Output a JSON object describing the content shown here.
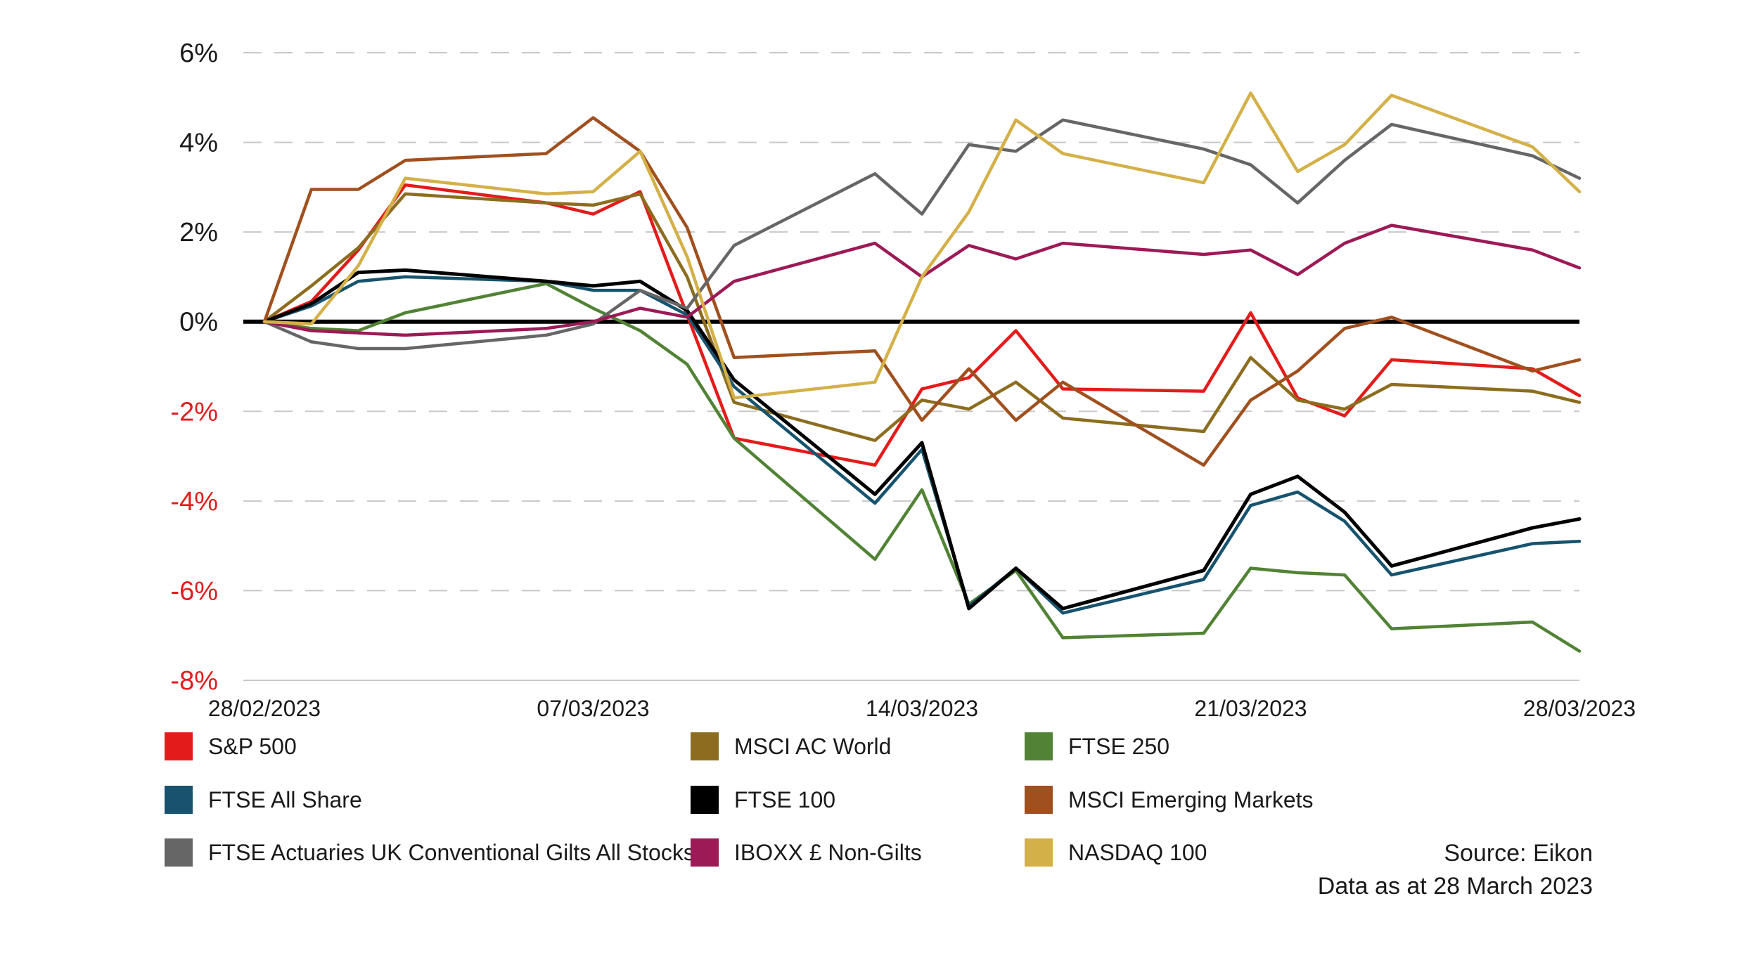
{
  "chart_data": {
    "type": "line",
    "x_ticks": [
      "28/02/2023",
      "07/03/2023",
      "14/03/2023",
      "21/03/2023",
      "28/03/2023"
    ],
    "y_ticks": [
      "6%",
      "4%",
      "2%",
      "0%",
      "-2%",
      "-4%",
      "-6%",
      "-8%"
    ],
    "y_tick_values": [
      6,
      4,
      2,
      0,
      -2,
      -4,
      -6,
      -8
    ],
    "ylim": [
      -8,
      6
    ],
    "x_range_days": [
      0,
      28
    ],
    "grid": "horizontal dashed",
    "zero_line": true,
    "positive_tick_color": "#1a1a1a",
    "negative_tick_color": "#e41b1b",
    "x": [
      0,
      1,
      2,
      3,
      6,
      7,
      8,
      9,
      10,
      13,
      14,
      15,
      16,
      17,
      20,
      21,
      22,
      23,
      24,
      27,
      28
    ],
    "series": [
      {
        "name": "S&P 500",
        "color": "#e41b1b",
        "values": [
          0,
          0.45,
          1.6,
          3.05,
          2.65,
          2.4,
          2.9,
          0.15,
          -2.6,
          -3.2,
          -1.5,
          -1.25,
          -0.2,
          -1.5,
          -1.55,
          0.2,
          -1.7,
          -2.1,
          -0.85,
          -1.05,
          -1.65
        ]
      },
      {
        "name": "MSCI AC World",
        "color": "#8c6d1f",
        "values": [
          0,
          0.8,
          1.65,
          2.85,
          2.65,
          2.6,
          2.85,
          1.0,
          -1.8,
          -2.65,
          -1.75,
          -1.95,
          -1.35,
          -2.15,
          -2.45,
          -0.8,
          -1.75,
          -1.95,
          -1.4,
          -1.55,
          -1.8
        ]
      },
      {
        "name": "FTSE 250",
        "color": "#528235",
        "values": [
          0,
          -0.15,
          -0.2,
          0.2,
          0.85,
          0.3,
          -0.2,
          -0.95,
          -2.6,
          -5.3,
          -3.75,
          -6.3,
          -5.55,
          -7.05,
          -6.95,
          -5.5,
          -5.6,
          -5.65,
          -6.85,
          -6.7,
          -7.35
        ]
      },
      {
        "name": "FTSE All Share",
        "color": "#17536e",
        "values": [
          0,
          0.35,
          0.9,
          1.0,
          0.9,
          0.7,
          0.7,
          0.15,
          -1.45,
          -4.05,
          -2.85,
          -6.35,
          -5.5,
          -6.5,
          -5.75,
          -4.1,
          -3.8,
          -4.45,
          -5.65,
          -4.95,
          -4.9
        ]
      },
      {
        "name": "FTSE 100",
        "color": "#000000",
        "values": [
          0,
          0.4,
          1.1,
          1.15,
          0.9,
          0.8,
          0.9,
          0.25,
          -1.3,
          -3.85,
          -2.7,
          -6.4,
          -5.5,
          -6.4,
          -5.55,
          -3.85,
          -3.45,
          -4.25,
          -5.45,
          -4.6,
          -4.4
        ]
      },
      {
        "name": "MSCI Emerging Markets",
        "color": "#a0501e",
        "values": [
          0,
          2.95,
          2.95,
          3.6,
          3.75,
          4.55,
          3.8,
          2.1,
          -0.8,
          -0.65,
          -2.2,
          -1.05,
          -2.2,
          -1.35,
          -3.2,
          -1.75,
          -1.1,
          -0.15,
          0.1,
          -1.1,
          -0.85
        ]
      },
      {
        "name": "FTSE Actuaries UK Conventional Gilts All Stocks",
        "color": "#666666",
        "values": [
          0,
          -0.45,
          -0.6,
          -0.6,
          -0.3,
          -0.05,
          0.7,
          0.3,
          1.7,
          3.3,
          2.4,
          3.95,
          3.8,
          4.5,
          3.85,
          3.5,
          2.65,
          3.6,
          4.4,
          3.7,
          3.2
        ]
      },
      {
        "name": "IBOXX £ Non-Gilts",
        "color": "#9c1a55",
        "values": [
          0,
          -0.2,
          -0.25,
          -0.3,
          -0.15,
          0,
          0.3,
          0.1,
          0.9,
          1.75,
          1.0,
          1.7,
          1.4,
          1.75,
          1.5,
          1.6,
          1.05,
          1.75,
          2.15,
          1.6,
          1.2
        ]
      },
      {
        "name": "NASDAQ 100",
        "color": "#d4b048",
        "values": [
          0,
          -0.05,
          1.25,
          3.2,
          2.85,
          2.9,
          3.8,
          1.45,
          -1.7,
          -1.35,
          1.0,
          2.45,
          4.5,
          3.75,
          3.1,
          5.1,
          3.35,
          3.95,
          5.05,
          3.9,
          2.9
        ]
      }
    ],
    "legend_order": [
      "S&P 500",
      "MSCI AC World",
      "FTSE 250",
      "FTSE All Share",
      "FTSE 100",
      "MSCI Emerging Markets",
      "FTSE Actuaries UK Conventional Gilts All Stocks",
      "IBOXX £ Non-Gilts",
      "NASDAQ 100"
    ],
    "legend_placement": "bottom, 3 columns"
  },
  "source": {
    "line1": "Source: Eikon",
    "line2": "Data as at 28 March 2023"
  }
}
